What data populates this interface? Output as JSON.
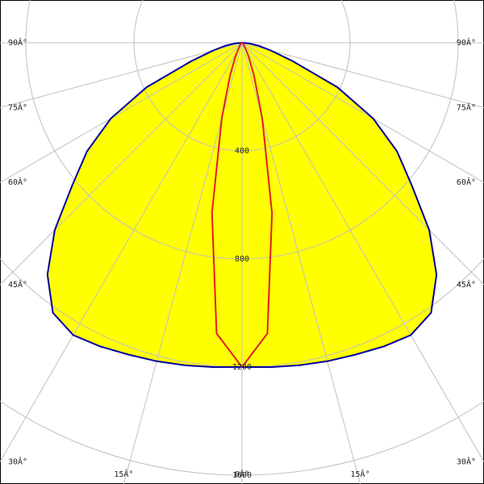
{
  "chart_data": {
    "type": "polar",
    "angles": [
      0,
      5,
      10,
      15,
      20,
      25,
      30,
      35,
      40,
      45,
      50,
      55,
      60,
      65,
      70,
      75,
      80,
      85,
      90
    ],
    "series": [
      {
        "color": "#ffff00",
        "edge_color": "#0000a0",
        "values": [
          1200,
          1205,
          1212,
          1220,
          1228,
          1240,
          1249,
          1220,
          1120,
          980,
          820,
          700,
          560,
          390,
          200,
          110,
          60,
          25,
          0
        ]
      },
      {
        "color": "#e02020",
        "values": [
          1200,
          1080,
          640,
          290,
          130,
          60,
          30,
          15,
          10,
          6,
          4,
          3,
          2,
          2,
          1,
          1,
          0,
          0,
          0
        ]
      }
    ],
    "rlim": [
      0,
      1600
    ],
    "rticks": [
      400,
      800,
      1200,
      1600
    ],
    "angle_ticks": [
      {
        "value": 0,
        "label": "0Â°"
      },
      {
        "value": 15,
        "label": "15Â°"
      },
      {
        "value": 30,
        "label": "30Â°"
      },
      {
        "value": 45,
        "label": "45Â°"
      },
      {
        "value": 60,
        "label": "60Â°"
      },
      {
        "value": 75,
        "label": "75Â°"
      },
      {
        "value": 90,
        "label": "90Â°"
      }
    ]
  }
}
